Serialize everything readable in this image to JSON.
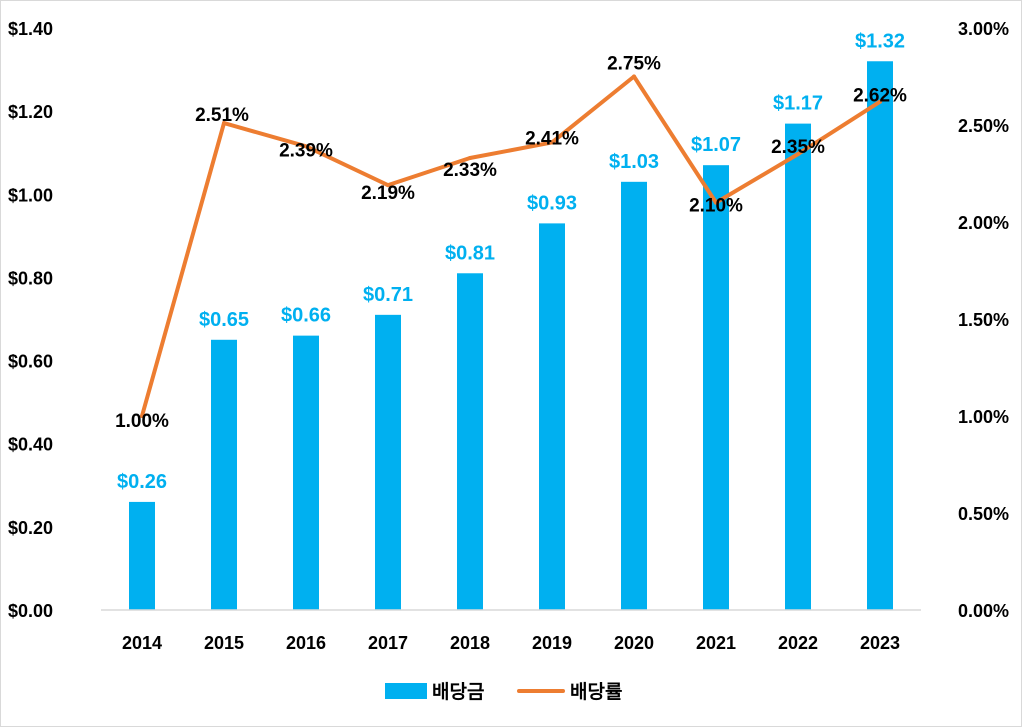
{
  "chart_data": {
    "type": "bar+line",
    "title": "",
    "categories": [
      "2014",
      "2015",
      "2016",
      "2017",
      "2018",
      "2019",
      "2020",
      "2021",
      "2022",
      "2023"
    ],
    "series": [
      {
        "name": "배당금",
        "type": "bar",
        "axis": "left",
        "values": [
          0.26,
          0.65,
          0.66,
          0.71,
          0.81,
          0.93,
          1.03,
          1.07,
          1.17,
          1.32
        ],
        "labels": [
          "$0.26",
          "$0.65",
          "$0.66",
          "$0.71",
          "$0.81",
          "$0.93",
          "$1.03",
          "$1.07",
          "$1.17",
          "$1.32"
        ],
        "color": "#00b0f0"
      },
      {
        "name": "배당률",
        "type": "line",
        "axis": "right",
        "values": [
          1.0,
          2.51,
          2.39,
          2.19,
          2.33,
          2.41,
          2.75,
          2.1,
          2.35,
          2.62
        ],
        "labels": [
          "1.00%",
          "2.51%",
          "2.39%",
          "2.19%",
          "2.33%",
          "2.41%",
          "2.75%",
          "2.10%",
          "2.35%",
          "2.62%"
        ],
        "color": "#ed7d31"
      }
    ],
    "y_left": {
      "range": [
        0,
        1.4
      ],
      "ticks": [
        0,
        0.2,
        0.4,
        0.6,
        0.8,
        1.0,
        1.2,
        1.4
      ],
      "tick_labels": [
        "$0.00",
        "$0.20",
        "$0.40",
        "$0.60",
        "$0.80",
        "$1.00",
        "$1.20",
        "$1.40"
      ]
    },
    "y_right": {
      "range": [
        0,
        3.0
      ],
      "ticks": [
        0,
        0.5,
        1.0,
        1.5,
        2.0,
        2.5,
        3.0
      ],
      "tick_labels": [
        "0.00%",
        "0.50%",
        "1.00%",
        "1.50%",
        "2.00%",
        "2.50%",
        "3.00%"
      ]
    },
    "xlabel": "",
    "ylabel": "",
    "grid": false,
    "legend": {
      "position": "bottom",
      "entries": [
        "배당금",
        "배당률"
      ]
    },
    "colors": {
      "bar": "#00b0f0",
      "line": "#ed7d31",
      "bar_label": "#00b0f0",
      "line_label": "#000000",
      "axis": "#d9d9d9"
    }
  }
}
